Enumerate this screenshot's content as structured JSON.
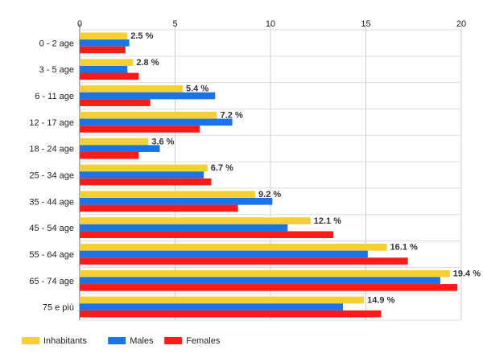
{
  "chart_data": {
    "type": "bar",
    "orientation": "horizontal",
    "categories": [
      "0 - 2 age",
      "3 - 5 age",
      "6 - 11 age",
      "12 - 17 age",
      "18 - 24 age",
      "25 - 34 age",
      "35 - 44 age",
      "45 - 54 age",
      "55 - 64 age",
      "65 - 74 age",
      "75 e più"
    ],
    "series": [
      {
        "name": "Inhabitants",
        "color": "#f5d033",
        "values": [
          2.5,
          2.8,
          5.4,
          7.2,
          3.6,
          6.7,
          9.2,
          12.1,
          16.1,
          19.4,
          14.9
        ]
      },
      {
        "name": "Males",
        "color": "#1a73e8",
        "values": [
          2.6,
          2.5,
          7.1,
          8.0,
          4.2,
          6.5,
          10.1,
          10.9,
          15.1,
          18.9,
          13.8
        ]
      },
      {
        "name": "Females",
        "color": "#ff1a1a",
        "values": [
          2.4,
          3.1,
          3.7,
          6.3,
          3.1,
          6.9,
          8.3,
          13.3,
          17.2,
          19.8,
          15.8
        ]
      }
    ],
    "data_labels": [
      "2.5 %",
      "2.8 %",
      "5.4 %",
      "7.2 %",
      "3.6 %",
      "6.7 %",
      "9.2 %",
      "12.1 %",
      "16.1 %",
      "19.4 %",
      "14.9 %"
    ],
    "xlim": [
      0,
      20
    ],
    "xticks": [
      "0",
      "5",
      "10",
      "15",
      "20"
    ],
    "grid": true,
    "legend_position": "bottom-left",
    "title": "",
    "xlabel": "",
    "ylabel": ""
  }
}
